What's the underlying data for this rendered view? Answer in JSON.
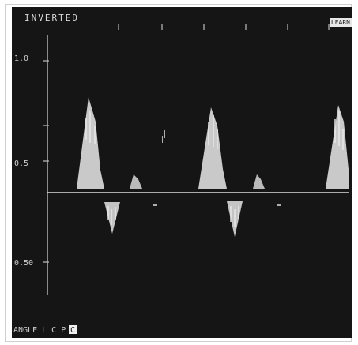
{
  "screen": {
    "header_label": "INVERTED",
    "corner_tag": "LEARN",
    "y_labels": [
      "1.0",
      "0.5",
      "0.50"
    ],
    "bottom_label": "ANGLE L C P",
    "selected_letter": "C",
    "colors": {
      "screen_bg": "#151515",
      "trace": "#dedede",
      "axis": "#cfcfcf",
      "text": "#d8d8d8"
    }
  }
}
